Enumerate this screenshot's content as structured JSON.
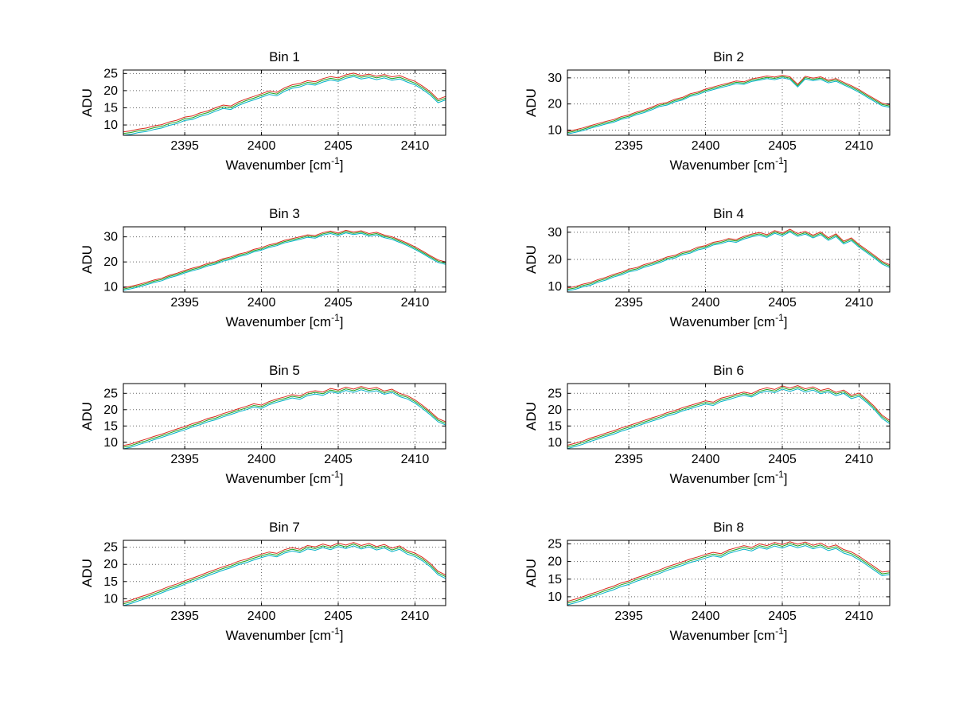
{
  "figure": {
    "background": "#ffffff"
  },
  "labels": {
    "ylabel": "ADU",
    "xlabel_prefix": "Wavenumber [cm",
    "xlabel_sup": "-1",
    "xlabel_suffix": "]"
  },
  "style": {
    "axis_color": "#000000",
    "grid_color": "#666666",
    "series_colors": [
      "#d92a1c",
      "#1fa11f",
      "#00b2c7"
    ]
  },
  "chart_data": [
    {
      "type": "line",
      "title": "Bin 1",
      "xlabel": "Wavenumber [cm⁻¹]",
      "ylabel": "ADU",
      "xlim": [
        2391,
        2412
      ],
      "ylim": [
        7,
        26
      ],
      "xticks": [
        2395,
        2400,
        2405,
        2410
      ],
      "yticks": [
        10,
        15,
        20,
        25
      ],
      "grid": true,
      "legend": "none",
      "x_start": 2391,
      "x_step": 0.5,
      "base_values": [
        7.5,
        7.8,
        8.3,
        8.6,
        9.2,
        9.6,
        10.4,
        10.9,
        11.8,
        12.1,
        13.0,
        13.6,
        14.5,
        15.3,
        15.0,
        16.2,
        17.1,
        17.8,
        18.6,
        19.4,
        19.0,
        20.3,
        21.2,
        21.6,
        22.4,
        22.1,
        23.0,
        23.6,
        23.2,
        24.1,
        24.6,
        23.9,
        24.3,
        23.7,
        24.2,
        23.5,
        23.9,
        23.0,
        22.2,
        20.8,
        19.2,
        17.0,
        17.8
      ],
      "series": [
        {
          "name": "upper-trace",
          "color": "#d92a1c",
          "offset": 0.5
        },
        {
          "name": "middle-trace",
          "color": "#1fa11f",
          "offset": 0
        },
        {
          "name": "lower-trace",
          "color": "#00b2c7",
          "offset": -0.5
        }
      ]
    },
    {
      "type": "line",
      "title": "Bin 2",
      "xlabel": "Wavenumber [cm⁻¹]",
      "ylabel": "ADU",
      "xlim": [
        2391,
        2412
      ],
      "ylim": [
        8,
        33
      ],
      "xticks": [
        2395,
        2400,
        2405,
        2410
      ],
      "yticks": [
        10,
        20,
        30
      ],
      "grid": true,
      "legend": "none",
      "x_start": 2391,
      "x_step": 0.5,
      "base_values": [
        9.0,
        9.6,
        10.3,
        11.2,
        12.0,
        12.8,
        13.5,
        14.6,
        15.3,
        16.4,
        17.2,
        18.3,
        19.5,
        20.1,
        21.3,
        22.0,
        23.4,
        24.1,
        25.2,
        26.0,
        26.8,
        27.5,
        28.3,
        28.0,
        29.1,
        29.6,
        30.2,
        29.8,
        30.5,
        29.9,
        27.0,
        30.1,
        29.4,
        29.9,
        28.6,
        29.2,
        27.8,
        26.5,
        25.0,
        23.2,
        21.5,
        19.8,
        19.2
      ],
      "series": [
        {
          "name": "upper-trace",
          "color": "#d92a1c",
          "offset": 0.5
        },
        {
          "name": "middle-trace",
          "color": "#1fa11f",
          "offset": 0
        },
        {
          "name": "lower-trace",
          "color": "#00b2c7",
          "offset": -0.5
        }
      ]
    },
    {
      "type": "line",
      "title": "Bin 3",
      "xlabel": "Wavenumber [cm⁻¹]",
      "ylabel": "ADU",
      "xlim": [
        2391,
        2412
      ],
      "ylim": [
        8,
        34
      ],
      "xticks": [
        2395,
        2400,
        2405,
        2410
      ],
      "yticks": [
        10,
        20,
        30
      ],
      "grid": true,
      "legend": "none",
      "x_start": 2391,
      "x_step": 0.5,
      "base_values": [
        9.2,
        9.8,
        10.5,
        11.4,
        12.3,
        13.0,
        14.2,
        15.0,
        16.1,
        17.0,
        17.8,
        18.9,
        19.6,
        20.8,
        21.5,
        22.6,
        23.3,
        24.5,
        25.2,
        26.3,
        27.0,
        28.1,
        28.8,
        29.5,
        30.3,
        30.0,
        31.2,
        31.8,
        31.0,
        32.1,
        31.4,
        31.9,
        30.8,
        31.3,
        30.2,
        29.5,
        28.3,
        27.0,
        25.5,
        23.8,
        22.0,
        20.3,
        19.5
      ],
      "series": [
        {
          "name": "upper-trace",
          "color": "#d92a1c",
          "offset": 0.5
        },
        {
          "name": "middle-trace",
          "color": "#1fa11f",
          "offset": 0
        },
        {
          "name": "lower-trace",
          "color": "#00b2c7",
          "offset": -0.5
        }
      ]
    },
    {
      "type": "line",
      "title": "Bin 4",
      "xlabel": "Wavenumber [cm⁻¹]",
      "ylabel": "ADU",
      "xlim": [
        2391,
        2412
      ],
      "ylim": [
        8,
        32
      ],
      "xticks": [
        2395,
        2400,
        2405,
        2410
      ],
      "yticks": [
        10,
        20,
        30
      ],
      "grid": true,
      "legend": "none",
      "x_start": 2391,
      "x_step": 0.5,
      "base_values": [
        9.0,
        9.5,
        10.4,
        11.0,
        12.1,
        12.9,
        14.0,
        14.8,
        15.9,
        16.5,
        17.6,
        18.4,
        19.3,
        20.4,
        21.0,
        22.2,
        22.8,
        24.0,
        24.6,
        25.8,
        26.3,
        27.2,
        26.8,
        28.0,
        28.8,
        29.4,
        28.6,
        30.1,
        29.2,
        30.6,
        29.0,
        29.8,
        28.4,
        29.6,
        27.5,
        28.9,
        26.2,
        27.4,
        25.0,
        23.0,
        21.0,
        18.8,
        17.5
      ],
      "series": [
        {
          "name": "upper-trace",
          "color": "#d92a1c",
          "offset": 0.5
        },
        {
          "name": "middle-trace",
          "color": "#1fa11f",
          "offset": 0
        },
        {
          "name": "lower-trace",
          "color": "#00b2c7",
          "offset": -0.5
        }
      ]
    },
    {
      "type": "line",
      "title": "Bin 5",
      "xlabel": "Wavenumber [cm⁻¹]",
      "ylabel": "ADU",
      "xlim": [
        2391,
        2412
      ],
      "ylim": [
        8,
        28
      ],
      "xticks": [
        2395,
        2400,
        2405,
        2410
      ],
      "yticks": [
        10,
        15,
        20,
        25
      ],
      "grid": true,
      "legend": "none",
      "x_start": 2391,
      "x_step": 0.5,
      "base_values": [
        8.5,
        9.0,
        9.8,
        10.5,
        11.3,
        12.0,
        12.8,
        13.6,
        14.3,
        15.2,
        15.9,
        16.8,
        17.4,
        18.3,
        19.0,
        19.8,
        20.5,
        21.3,
        20.9,
        22.0,
        22.8,
        23.4,
        24.1,
        23.7,
        24.8,
        25.3,
        24.9,
        26.0,
        25.5,
        26.4,
        25.8,
        26.6,
        25.9,
        26.3,
        25.2,
        25.8,
        24.5,
        23.8,
        22.5,
        20.8,
        18.9,
        16.8,
        15.8
      ],
      "series": [
        {
          "name": "upper-trace",
          "color": "#d92a1c",
          "offset": 0.5
        },
        {
          "name": "middle-trace",
          "color": "#1fa11f",
          "offset": 0
        },
        {
          "name": "lower-trace",
          "color": "#00b2c7",
          "offset": -0.5
        }
      ]
    },
    {
      "type": "line",
      "title": "Bin 6",
      "xlabel": "Wavenumber [cm⁻¹]",
      "ylabel": "ADU",
      "xlim": [
        2391,
        2412
      ],
      "ylim": [
        8,
        28
      ],
      "xticks": [
        2395,
        2400,
        2405,
        2410
      ],
      "yticks": [
        10,
        15,
        20,
        25
      ],
      "grid": true,
      "legend": "none",
      "x_start": 2391,
      "x_step": 0.5,
      "base_values": [
        8.6,
        9.2,
        9.9,
        10.8,
        11.5,
        12.3,
        13.0,
        13.9,
        14.6,
        15.4,
        16.2,
        17.0,
        17.7,
        18.6,
        19.2,
        20.1,
        20.8,
        21.5,
        22.2,
        21.8,
        23.0,
        23.6,
        24.3,
        24.9,
        24.4,
        25.6,
        26.2,
        25.7,
        26.8,
        26.1,
        26.9,
        25.9,
        26.5,
        25.4,
        26.0,
        24.8,
        25.5,
        23.9,
        24.6,
        22.7,
        20.5,
        17.8,
        16.2
      ],
      "series": [
        {
          "name": "upper-trace",
          "color": "#d92a1c",
          "offset": 0.5
        },
        {
          "name": "middle-trace",
          "color": "#1fa11f",
          "offset": 0
        },
        {
          "name": "lower-trace",
          "color": "#00b2c7",
          "offset": -0.5
        }
      ]
    },
    {
      "type": "line",
      "title": "Bin 7",
      "xlabel": "Wavenumber [cm⁻¹]",
      "ylabel": "ADU",
      "xlim": [
        2391,
        2412
      ],
      "ylim": [
        8,
        27
      ],
      "xticks": [
        2395,
        2400,
        2405,
        2410
      ],
      "yticks": [
        10,
        15,
        20,
        25
      ],
      "grid": true,
      "legend": "none",
      "x_start": 2391,
      "x_step": 0.5,
      "base_values": [
        8.5,
        9.1,
        9.9,
        10.6,
        11.4,
        12.2,
        13.1,
        13.8,
        14.7,
        15.5,
        16.3,
        17.2,
        18.0,
        18.8,
        19.5,
        20.4,
        21.0,
        21.8,
        22.5,
        23.1,
        22.7,
        23.8,
        24.4,
        23.9,
        25.0,
        24.6,
        25.4,
        24.8,
        25.7,
        25.1,
        25.9,
        25.0,
        25.6,
        24.7,
        25.3,
        24.2,
        24.9,
        23.5,
        22.8,
        21.5,
        19.8,
        17.5,
        16.4
      ],
      "series": [
        {
          "name": "upper-trace",
          "color": "#d92a1c",
          "offset": 0.5
        },
        {
          "name": "middle-trace",
          "color": "#1fa11f",
          "offset": 0
        },
        {
          "name": "lower-trace",
          "color": "#00b2c7",
          "offset": -0.5
        }
      ]
    },
    {
      "type": "line",
      "title": "Bin 8",
      "xlabel": "Wavenumber [cm⁻¹]",
      "ylabel": "ADU",
      "xlim": [
        2391,
        2412
      ],
      "ylim": [
        7.5,
        26
      ],
      "xticks": [
        2395,
        2400,
        2405,
        2410
      ],
      "yticks": [
        10,
        15,
        20,
        25
      ],
      "grid": true,
      "legend": "none",
      "x_start": 2391,
      "x_step": 0.5,
      "base_values": [
        8.2,
        8.8,
        9.5,
        10.3,
        11.0,
        11.8,
        12.5,
        13.4,
        14.0,
        14.9,
        15.6,
        16.4,
        17.1,
        18.0,
        18.7,
        19.4,
        20.2,
        20.8,
        21.5,
        22.1,
        21.7,
        22.8,
        23.4,
        24.0,
        23.5,
        24.5,
        24.0,
        24.9,
        24.3,
        25.1,
        24.4,
        25.0,
        24.1,
        24.7,
        23.6,
        24.2,
        22.9,
        22.2,
        21.0,
        19.5,
        18.0,
        16.5,
        16.8
      ],
      "series": [
        {
          "name": "upper-trace",
          "color": "#d92a1c",
          "offset": 0.5
        },
        {
          "name": "middle-trace",
          "color": "#1fa11f",
          "offset": 0
        },
        {
          "name": "lower-trace",
          "color": "#00b2c7",
          "offset": -0.5
        }
      ]
    }
  ]
}
